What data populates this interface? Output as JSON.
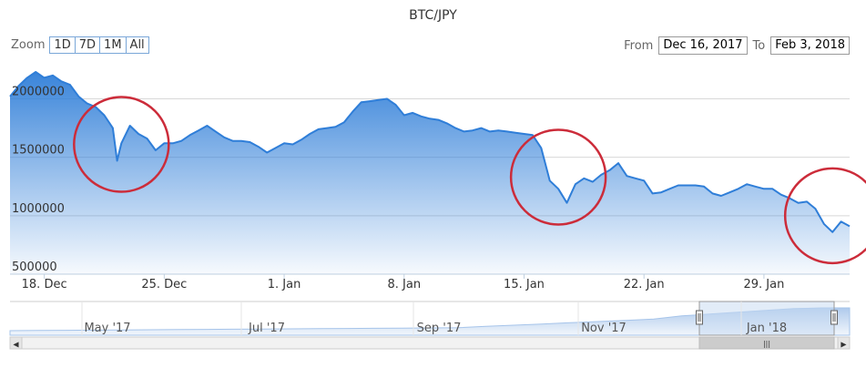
{
  "chart_data": {
    "type": "area",
    "title": "BTC/JPY",
    "xlabel": "",
    "ylabel": "",
    "x_start": "2017-12-16",
    "x_end": "2018-02-03",
    "ylim": [
      500000,
      2300000
    ],
    "ytick_labels": [
      "500000",
      "1000000",
      "1500000",
      "2000000"
    ],
    "yticks": [
      500000,
      1000000,
      1500000,
      2000000
    ],
    "xtick_labels": [
      "18. Dec",
      "25. Dec",
      "1. Jan",
      "8. Jan",
      "15. Jan",
      "22. Jan",
      "29. Jan"
    ],
    "xticks": [
      "2017-12-18",
      "2017-12-25",
      "2018-01-01",
      "2018-01-08",
      "2018-01-15",
      "2018-01-22",
      "2018-01-29"
    ],
    "grid": true,
    "series": [
      {
        "color": "#2f7ed8",
        "points": [
          [
            "2017-12-16",
            2020000
          ],
          [
            "2017-12-16T12",
            2110000
          ],
          [
            "2017-12-17",
            2180000
          ],
          [
            "2017-12-17T12",
            2230000
          ],
          [
            "2017-12-18",
            2180000
          ],
          [
            "2017-12-18T12",
            2200000
          ],
          [
            "2017-12-19",
            2150000
          ],
          [
            "2017-12-19T12",
            2120000
          ],
          [
            "2017-12-20",
            2020000
          ],
          [
            "2017-12-20T12",
            1960000
          ],
          [
            "2017-12-21",
            1930000
          ],
          [
            "2017-12-21T12",
            1860000
          ],
          [
            "2017-12-22",
            1750000
          ],
          [
            "2017-12-22T06",
            1470000
          ],
          [
            "2017-12-22T12",
            1620000
          ],
          [
            "2017-12-23",
            1770000
          ],
          [
            "2017-12-23T12",
            1700000
          ],
          [
            "2017-12-24",
            1660000
          ],
          [
            "2017-12-24T12",
            1560000
          ],
          [
            "2017-12-25",
            1620000
          ],
          [
            "2017-12-25T12",
            1620000
          ],
          [
            "2017-12-26",
            1640000
          ],
          [
            "2017-12-26T12",
            1690000
          ],
          [
            "2017-12-27",
            1730000
          ],
          [
            "2017-12-27T12",
            1770000
          ],
          [
            "2017-12-28",
            1720000
          ],
          [
            "2017-12-28T12",
            1670000
          ],
          [
            "2017-12-29",
            1640000
          ],
          [
            "2017-12-29T12",
            1640000
          ],
          [
            "2017-12-30",
            1630000
          ],
          [
            "2017-12-30T12",
            1590000
          ],
          [
            "2017-12-31",
            1540000
          ],
          [
            "2017-12-31T12",
            1580000
          ],
          [
            "2018-01-01",
            1620000
          ],
          [
            "2018-01-01T12",
            1610000
          ],
          [
            "2018-01-02",
            1650000
          ],
          [
            "2018-01-02T12",
            1700000
          ],
          [
            "2018-01-03",
            1740000
          ],
          [
            "2018-01-03T12",
            1750000
          ],
          [
            "2018-01-04",
            1760000
          ],
          [
            "2018-01-04T12",
            1800000
          ],
          [
            "2018-01-05",
            1890000
          ],
          [
            "2018-01-05T12",
            1970000
          ],
          [
            "2018-01-06",
            1980000
          ],
          [
            "2018-01-06T12",
            1990000
          ],
          [
            "2018-01-07",
            2000000
          ],
          [
            "2018-01-07T12",
            1950000
          ],
          [
            "2018-01-08",
            1860000
          ],
          [
            "2018-01-08T12",
            1880000
          ],
          [
            "2018-01-09",
            1850000
          ],
          [
            "2018-01-09T12",
            1830000
          ],
          [
            "2018-01-10",
            1820000
          ],
          [
            "2018-01-10T12",
            1790000
          ],
          [
            "2018-01-11",
            1750000
          ],
          [
            "2018-01-11T12",
            1720000
          ],
          [
            "2018-01-12",
            1730000
          ],
          [
            "2018-01-12T12",
            1750000
          ],
          [
            "2018-01-13",
            1720000
          ],
          [
            "2018-01-13T12",
            1730000
          ],
          [
            "2018-01-14",
            1720000
          ],
          [
            "2018-01-14T12",
            1710000
          ],
          [
            "2018-01-15",
            1700000
          ],
          [
            "2018-01-15T12",
            1690000
          ],
          [
            "2018-01-16",
            1580000
          ],
          [
            "2018-01-16T12",
            1300000
          ],
          [
            "2018-01-17",
            1230000
          ],
          [
            "2018-01-17T12",
            1110000
          ],
          [
            "2018-01-18",
            1270000
          ],
          [
            "2018-01-18T12",
            1320000
          ],
          [
            "2018-01-19",
            1290000
          ],
          [
            "2018-01-19T12",
            1350000
          ],
          [
            "2018-01-20",
            1390000
          ],
          [
            "2018-01-20T12",
            1450000
          ],
          [
            "2018-01-21",
            1340000
          ],
          [
            "2018-01-21T12",
            1320000
          ],
          [
            "2018-01-22",
            1300000
          ],
          [
            "2018-01-22T12",
            1190000
          ],
          [
            "2018-01-23",
            1200000
          ],
          [
            "2018-01-23T12",
            1230000
          ],
          [
            "2018-01-24",
            1260000
          ],
          [
            "2018-01-24T12",
            1260000
          ],
          [
            "2018-01-25",
            1260000
          ],
          [
            "2018-01-25T12",
            1250000
          ],
          [
            "2018-01-26",
            1190000
          ],
          [
            "2018-01-26T12",
            1170000
          ],
          [
            "2018-01-27",
            1200000
          ],
          [
            "2018-01-27T12",
            1230000
          ],
          [
            "2018-01-28",
            1270000
          ],
          [
            "2018-01-28T12",
            1250000
          ],
          [
            "2018-01-29",
            1230000
          ],
          [
            "2018-01-29T12",
            1230000
          ],
          [
            "2018-01-30",
            1180000
          ],
          [
            "2018-01-30T12",
            1150000
          ],
          [
            "2018-01-31",
            1110000
          ],
          [
            "2018-01-31T12",
            1120000
          ],
          [
            "2018-02-01",
            1060000
          ],
          [
            "2018-02-01T12",
            930000
          ],
          [
            "2018-02-02",
            860000
          ],
          [
            "2018-02-02T12",
            950000
          ],
          [
            "2018-02-03",
            910000
          ]
        ]
      }
    ],
    "annotations": [
      {
        "type": "circle",
        "x": "2017-12-22T12",
        "y": 1610000,
        "color": "#cc2c3a"
      },
      {
        "type": "circle",
        "x": "2018-01-17",
        "y": 1330000,
        "color": "#cc2c3a"
      },
      {
        "type": "circle",
        "x": "2018-02-02",
        "y": 1000000,
        "color": "#cc2c3a"
      }
    ]
  },
  "zoom": {
    "label": "Zoom",
    "buttons": [
      "1D",
      "7D",
      "1M",
      "All"
    ]
  },
  "range": {
    "from_label": "From",
    "from_value": "Dec 16, 2017",
    "to_label": "To",
    "to_value": "Feb 3, 2018"
  },
  "navigator": {
    "labels": [
      "May '17",
      "Jul '17",
      "Sep '17",
      "Nov '17",
      "Jan '18"
    ],
    "handle_glyph": "|||",
    "left_arrow": "◀",
    "right_arrow": "▶"
  },
  "colors": {
    "line": "#2f7ed8",
    "annotation": "#cc2c3a",
    "nav_fill": "#dce9f7",
    "nav_line": "#a6c4ea"
  }
}
